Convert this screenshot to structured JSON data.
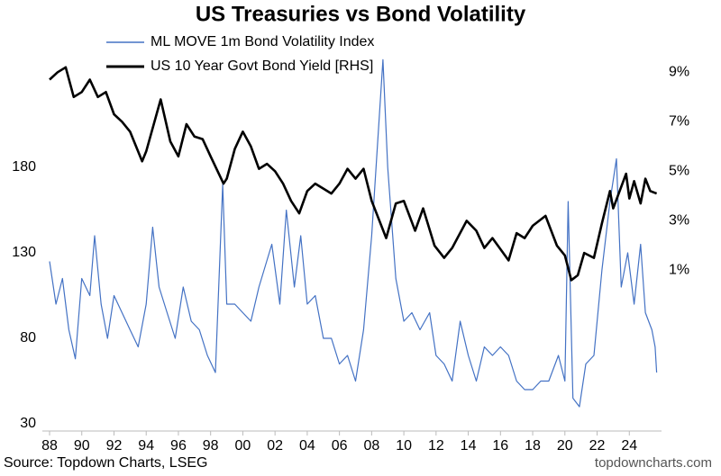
{
  "chart_data": {
    "type": "line",
    "title": "US Treasuries vs Bond Volatility",
    "source": "Source: Topdown Charts, LSEG",
    "watermark": "topdowncharts.com",
    "xlim": [
      1988,
      2026
    ],
    "xticks": [
      {
        "value": 1988,
        "label": "88"
      },
      {
        "value": 1990,
        "label": "90"
      },
      {
        "value": 1992,
        "label": "92"
      },
      {
        "value": 1994,
        "label": "94"
      },
      {
        "value": 1996,
        "label": "96"
      },
      {
        "value": 1998,
        "label": "98"
      },
      {
        "value": 2000,
        "label": "00"
      },
      {
        "value": 2002,
        "label": "02"
      },
      {
        "value": 2004,
        "label": "04"
      },
      {
        "value": 2006,
        "label": "06"
      },
      {
        "value": 2008,
        "label": "08"
      },
      {
        "value": 2010,
        "label": "10"
      },
      {
        "value": 2012,
        "label": "12"
      },
      {
        "value": 2014,
        "label": "14"
      },
      {
        "value": 2016,
        "label": "16"
      },
      {
        "value": 2018,
        "label": "18"
      },
      {
        "value": 2020,
        "label": "20"
      },
      {
        "value": 2022,
        "label": "22"
      },
      {
        "value": 2024,
        "label": "24"
      }
    ],
    "ylim": [
      30,
      240
    ],
    "yticks": [
      30,
      80,
      130,
      180
    ],
    "y2lim": [
      -5.2,
      9.3
    ],
    "y2ticks": [
      {
        "value": 1,
        "label": "1%"
      },
      {
        "value": 3,
        "label": "3%"
      },
      {
        "value": 5,
        "label": "5%"
      },
      {
        "value": 7,
        "label": "7%"
      },
      {
        "value": 9,
        "label": "9%"
      }
    ],
    "series": [
      {
        "name": "ML MOVE 1m Bond Volatility Index",
        "color": "#4472c4",
        "axis": "y",
        "x": [
          1988,
          1988.4,
          1988.8,
          1989.2,
          1989.6,
          1990,
          1990.5,
          1990.8,
          1991.2,
          1991.6,
          1992,
          1992.5,
          1993,
          1993.5,
          1994,
          1994.4,
          1994.8,
          1995.3,
          1995.8,
          1996.3,
          1996.8,
          1997.3,
          1997.8,
          1998.3,
          1998.75,
          1999,
          1999.5,
          2000,
          2000.5,
          2001,
          2001.8,
          2002.3,
          2002.7,
          2003.2,
          2003.6,
          2004,
          2004.5,
          2005,
          2005.5,
          2006,
          2006.5,
          2007,
          2007.5,
          2008,
          2008.7,
          2009,
          2009.5,
          2010,
          2010.5,
          2011,
          2011.6,
          2012,
          2012.5,
          2013,
          2013.5,
          2014,
          2014.5,
          2015,
          2015.5,
          2016,
          2016.5,
          2017,
          2017.5,
          2018,
          2018.5,
          2019,
          2019.6,
          2020,
          2020.2,
          2020.5,
          2020.9,
          2021.3,
          2021.8,
          2022.3,
          2022.8,
          2023.2,
          2023.5,
          2023.9,
          2024.3,
          2024.7,
          2025,
          2025.4,
          2025.6,
          2025.7
        ],
        "values": [
          125,
          100,
          115,
          85,
          68,
          115,
          105,
          140,
          100,
          80,
          105,
          95,
          85,
          75,
          100,
          145,
          110,
          95,
          80,
          110,
          90,
          85,
          70,
          60,
          170,
          100,
          100,
          95,
          90,
          110,
          135,
          100,
          155,
          110,
          140,
          100,
          105,
          80,
          80,
          65,
          70,
          55,
          85,
          140,
          243,
          180,
          115,
          90,
          95,
          85,
          95,
          70,
          65,
          55,
          90,
          70,
          55,
          75,
          70,
          75,
          70,
          55,
          50,
          50,
          55,
          55,
          70,
          55,
          160,
          45,
          40,
          65,
          70,
          120,
          160,
          185,
          110,
          130,
          100,
          135,
          95,
          85,
          75,
          60
        ]
      },
      {
        "name": "US 10 Year Govt Bond Yield [RHS]",
        "color": "#000000",
        "axis": "y2",
        "x": [
          1988,
          1988.5,
          1989,
          1989.5,
          1990,
          1990.5,
          1991,
          1991.5,
          1992,
          1992.5,
          1993,
          1993.75,
          1994,
          1994.9,
          1995.5,
          1996,
          1996.5,
          1997,
          1997.5,
          1998,
          1998.8,
          1999,
          1999.5,
          2000,
          2000.5,
          2001,
          2001.5,
          2002,
          2002.5,
          2003,
          2003.5,
          2004,
          2004.5,
          2005,
          2005.5,
          2006,
          2006.5,
          2007,
          2007.5,
          2008,
          2008.9,
          2009.5,
          2010,
          2010.7,
          2011.2,
          2011.9,
          2012.5,
          2013,
          2013.9,
          2014.5,
          2015,
          2015.5,
          2016.5,
          2017,
          2017.5,
          2018,
          2018.8,
          2019.5,
          2020,
          2020.4,
          2020.8,
          2021.2,
          2021.8,
          2022.3,
          2022.8,
          2023,
          2023.8,
          2024,
          2024.3,
          2024.7,
          2025,
          2025.3,
          2025.7
        ],
        "values": [
          8.7,
          9.0,
          9.2,
          8.0,
          8.2,
          8.7,
          8.0,
          8.2,
          7.3,
          7.0,
          6.6,
          5.4,
          5.8,
          7.9,
          6.2,
          5.6,
          6.9,
          6.4,
          6.3,
          5.6,
          4.5,
          4.7,
          5.9,
          6.6,
          6.0,
          5.1,
          5.3,
          5.0,
          4.5,
          3.8,
          3.3,
          4.2,
          4.5,
          4.3,
          4.1,
          4.5,
          5.1,
          4.7,
          5.1,
          3.8,
          2.3,
          3.7,
          3.8,
          2.6,
          3.5,
          2.0,
          1.5,
          1.9,
          3.0,
          2.6,
          1.9,
          2.3,
          1.4,
          2.5,
          2.3,
          2.8,
          3.2,
          2.0,
          1.6,
          0.6,
          0.8,
          1.7,
          1.5,
          2.9,
          4.2,
          3.5,
          4.9,
          3.9,
          4.6,
          3.7,
          4.7,
          4.2,
          4.1
        ]
      }
    ]
  }
}
